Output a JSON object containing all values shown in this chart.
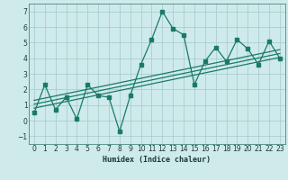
{
  "x": [
    0,
    1,
    2,
    3,
    4,
    5,
    6,
    7,
    8,
    9,
    10,
    11,
    12,
    13,
    14,
    15,
    16,
    17,
    18,
    19,
    20,
    21,
    22,
    23
  ],
  "y_main": [
    0.5,
    2.3,
    0.7,
    1.5,
    0.1,
    2.3,
    1.6,
    1.5,
    -0.7,
    1.6,
    3.6,
    5.2,
    7.0,
    5.9,
    5.5,
    2.3,
    3.8,
    4.7,
    3.8,
    5.2,
    4.6,
    3.6,
    5.1,
    4.0
  ],
  "color_main": "#1a7a6a",
  "color_trend": "#1a7a6a",
  "bg_color": "#ceeaea",
  "grid_color": "#aacece",
  "xlabel": "Humidex (Indice chaleur)",
  "xlim": [
    -0.5,
    23.5
  ],
  "ylim": [
    -1.5,
    7.5
  ],
  "yticks": [
    -1,
    0,
    1,
    2,
    3,
    4,
    5,
    6,
    7
  ],
  "trend_lines": [
    [
      0.8,
      4.05
    ],
    [
      1.05,
      4.3
    ],
    [
      1.3,
      4.55
    ]
  ],
  "marker_size": 2.5,
  "linewidth": 0.9,
  "trend_linewidth": 0.9
}
